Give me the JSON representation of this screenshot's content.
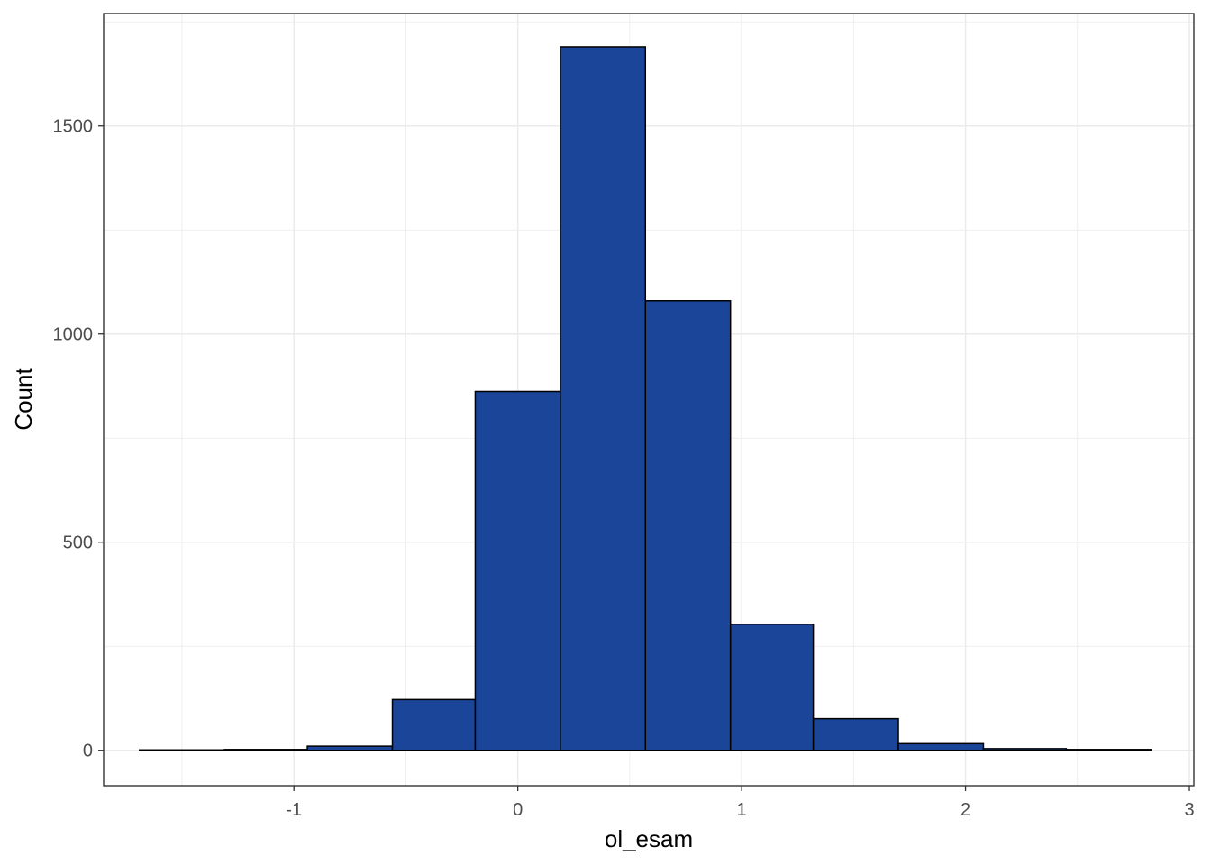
{
  "chart_data": {
    "type": "bar",
    "subtype": "histogram",
    "xlabel": "ol_esam",
    "ylabel": "Count",
    "xlim": [
      -1.85,
      3.02
    ],
    "ylim": [
      -85,
      1770
    ],
    "x_ticks": [
      -1,
      0,
      1,
      2,
      3
    ],
    "x_tick_labels": [
      "-1",
      "0",
      "1",
      "2",
      "3"
    ],
    "y_ticks": [
      0,
      500,
      1000,
      1500
    ],
    "y_tick_labels": [
      "0",
      "500",
      "1000",
      "1500"
    ],
    "x_minor_ticks": [
      -1.5,
      -0.5,
      0.5,
      1.5,
      2.5
    ],
    "y_minor_ticks": [
      250,
      750,
      1250,
      1750
    ],
    "grid": true,
    "bins": [
      {
        "x0": -1.69,
        "x1": -1.31,
        "count": 1
      },
      {
        "x0": -1.31,
        "x1": -0.94,
        "count": 2
      },
      {
        "x0": -0.94,
        "x1": -0.56,
        "count": 10
      },
      {
        "x0": -0.56,
        "x1": -0.19,
        "count": 122
      },
      {
        "x0": -0.19,
        "x1": 0.19,
        "count": 862
      },
      {
        "x0": 0.19,
        "x1": 0.57,
        "count": 1690
      },
      {
        "x0": 0.57,
        "x1": 0.95,
        "count": 1080
      },
      {
        "x0": 0.95,
        "x1": 1.32,
        "count": 303
      },
      {
        "x0": 1.32,
        "x1": 1.7,
        "count": 76
      },
      {
        "x0": 1.7,
        "x1": 2.08,
        "count": 16
      },
      {
        "x0": 2.08,
        "x1": 2.45,
        "count": 4
      },
      {
        "x0": 2.45,
        "x1": 2.83,
        "count": 2
      }
    ],
    "fill_color": "#1a4599",
    "stroke_color": "#000000",
    "panel_border_color": "#333333",
    "grid_color": "#ebebeb"
  }
}
